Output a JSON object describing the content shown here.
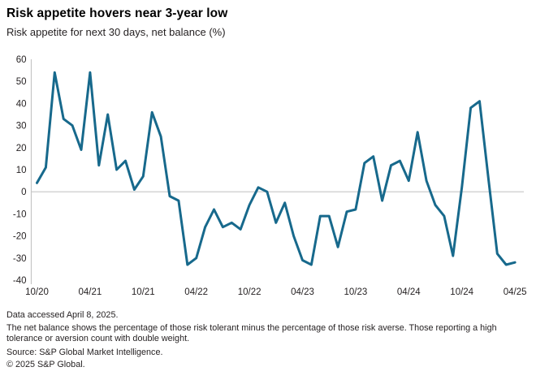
{
  "header": {
    "title": "Risk appetite hovers near 3-year low",
    "subtitle": "Risk appetite for next 30 days, net balance (%)"
  },
  "chart_data": {
    "type": "line",
    "title": "Risk appetite for next 30 days, net balance (%)",
    "x": [
      "10/20",
      "11/20",
      "12/20",
      "01/21",
      "02/21",
      "03/21",
      "04/21",
      "05/21",
      "06/21",
      "07/21",
      "08/21",
      "09/21",
      "10/21",
      "11/21",
      "12/21",
      "01/22",
      "02/22",
      "03/22",
      "04/22",
      "05/22",
      "06/22",
      "07/22",
      "08/22",
      "09/22",
      "10/22",
      "11/22",
      "12/22",
      "01/23",
      "02/23",
      "03/23",
      "04/23",
      "05/23",
      "06/23",
      "07/23",
      "08/23",
      "09/23",
      "10/23",
      "11/23",
      "12/23",
      "01/24",
      "02/24",
      "03/24",
      "04/24",
      "05/24",
      "06/24",
      "07/24",
      "08/24",
      "09/24",
      "10/24",
      "11/24",
      "12/24",
      "01/25",
      "02/25",
      "03/25",
      "04/25"
    ],
    "values": [
      4,
      11,
      54,
      33,
      30,
      19,
      54,
      12,
      35,
      10,
      14,
      1,
      7,
      36,
      25,
      -2,
      -4,
      -33,
      -30,
      -16,
      -8,
      -16,
      -14,
      -17,
      -6,
      2,
      0,
      -14,
      -5,
      -20,
      -31,
      -33,
      -11,
      -11,
      -25,
      -9,
      -8,
      13,
      16,
      -4,
      12,
      14,
      5,
      27,
      5,
      -6,
      -11,
      -29,
      2,
      38,
      41,
      6,
      -28,
      -33,
      -32
    ],
    "x_tick_labels": [
      "10/20",
      "04/21",
      "10/21",
      "04/22",
      "10/22",
      "04/23",
      "10/23",
      "04/24",
      "10/24",
      "04/25"
    ],
    "x_tick_every": 6,
    "y_ticks": [
      60,
      50,
      40,
      30,
      20,
      10,
      0,
      -10,
      -20,
      -30,
      -40
    ],
    "ylim": [
      -40,
      60
    ],
    "xlabel": "",
    "ylabel": "",
    "legend": "none",
    "grid": "zero-line-only",
    "line_color": "#17698c",
    "axis_color": "#c6c6c6",
    "tick_label_color": "#231f20"
  },
  "footer": {
    "accessed": "Data accessed April 8, 2025.",
    "note": "The net balance shows the percentage of those risk tolerant minus the percentage of those risk averse. Those reporting a high tolerance or aversion count with double weight.",
    "source": "Source: S&P Global Market Intelligence.",
    "copyright": "© 2025 S&P Global."
  }
}
